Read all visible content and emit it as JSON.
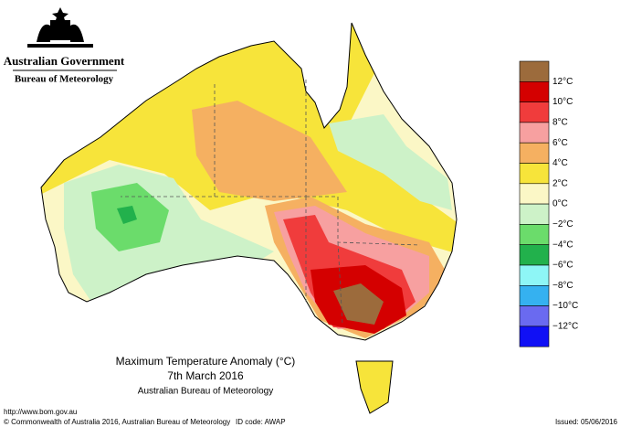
{
  "header": {
    "government": "Australian Government",
    "agency": "Bureau of Meteorology"
  },
  "map": {
    "title": "Maximum Temperature Anomaly (°C)",
    "date": "7th March 2016",
    "source": "Australian Bureau of Meteorology"
  },
  "legend": {
    "colors": [
      "#9c6b3c",
      "#d40000",
      "#f03c3c",
      "#f7a0a0",
      "#f5b061",
      "#f7e43a",
      "#fbf7c6",
      "#cdf2c8",
      "#6bdc6b",
      "#22b14c",
      "#8ef6f6",
      "#35b1f0",
      "#6a6af0",
      "#1010f5"
    ],
    "labels": [
      "12°C",
      "10°C",
      "8°C",
      "6°C",
      "4°C",
      "2°C",
      "0°C",
      "−2°C",
      "−4°C",
      "−6°C",
      "−8°C",
      "−10°C",
      "−12°C"
    ]
  },
  "footer": {
    "url": "http://www.bom.gov.au",
    "copyright": "© Commonwealth of Australia 2016, Australian Bureau of Meteorology",
    "id_code": "ID code: AWAP",
    "issued": "Issued: 05/06/2016"
  }
}
